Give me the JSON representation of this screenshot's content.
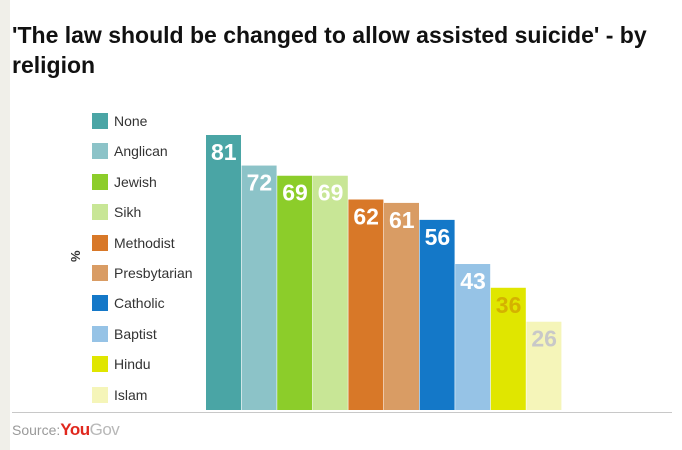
{
  "chart_data": {
    "type": "bar",
    "title": "'The law should be changed to allow assisted suicide' - by religion",
    "ylabel": "%",
    "categories": [
      "None",
      "Anglican",
      "Jewish",
      "Sikh",
      "Methodist",
      "Presbytarian",
      "Catholic",
      "Baptist",
      "Hindu",
      "Islam"
    ],
    "values": [
      81,
      72,
      69,
      69,
      62,
      61,
      56,
      43,
      36,
      26
    ],
    "colors": [
      "#4aa5a5",
      "#8cc3c8",
      "#8ccd2a",
      "#c8e696",
      "#d87828",
      "#d99c64",
      "#1478c8",
      "#96c3e6",
      "#e0e600",
      "#f5f5b9"
    ],
    "label_colors": [
      "#ffffff",
      "#ffffff",
      "#ffffff",
      "#ffffff",
      "#ffffff",
      "#ffffff",
      "#ffffff",
      "#ffffff",
      "#d4b200",
      "#c8c8c8"
    ],
    "ylim": [
      0,
      100
    ],
    "legend_position": "left",
    "grid": false
  },
  "source": {
    "label": "Source:",
    "logo_you": "You",
    "logo_gov": "Gov"
  }
}
